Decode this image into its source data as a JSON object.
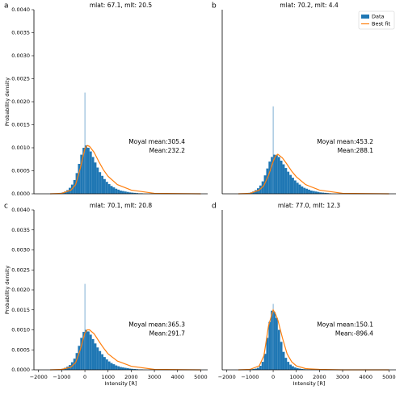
{
  "chart_data": [
    {
      "type": "histogram",
      "panel_label": "a",
      "title": "mlat: 67.1, mlt: 20.5",
      "ylabel": "Probability density",
      "xlim": [
        -2200,
        5300
      ],
      "ylim": [
        0,
        0.004
      ],
      "yticks": [
        {
          "value": 0,
          "label": "0.0000"
        },
        {
          "value": 0.0005,
          "label": "0.0005"
        },
        {
          "value": 0.001,
          "label": "0.0010"
        },
        {
          "value": 0.0015,
          "label": "0.0015"
        },
        {
          "value": 0.002,
          "label": "0.0020"
        },
        {
          "value": 0.0025,
          "label": "0.0025"
        },
        {
          "value": 0.003,
          "label": "0.0030"
        },
        {
          "value": 0.0035,
          "label": "0.0035"
        },
        {
          "value": 0.004,
          "label": "0.0040"
        }
      ],
      "hist": {
        "color": "#1f77b4",
        "bins": [
          -1200,
          -1100,
          -1000,
          -900,
          -800,
          -700,
          -600,
          -500,
          -400,
          -300,
          -200,
          -100,
          -10,
          10,
          100,
          200,
          300,
          400,
          500,
          600,
          700,
          800,
          900,
          1000,
          1100,
          1200,
          1300,
          1400,
          1500,
          1600,
          1700,
          1800,
          1900,
          2000,
          2100,
          2200,
          2300,
          2400,
          2500
        ],
        "values": [
          1e-05,
          2e-05,
          3e-05,
          5e-05,
          8e-05,
          0.00013,
          0.0002,
          0.0003,
          0.00045,
          0.00065,
          0.00085,
          0.001,
          0.0022,
          0.00105,
          0.001,
          0.00092,
          0.0008,
          0.00068,
          0.00057,
          0.00047,
          0.00039,
          0.00032,
          0.00026,
          0.00021,
          0.00017,
          0.00014,
          0.00011,
          9e-05,
          7e-05,
          6e-05,
          5e-05,
          4e-05,
          3e-05,
          2.5e-05,
          2e-05,
          1.5e-05,
          1e-05,
          1e-05
        ]
      },
      "fit": {
        "color": "#ff7f0e",
        "x": [
          -1500,
          -1000,
          -600,
          -400,
          -200,
          0,
          100,
          200,
          400,
          600,
          800,
          1000,
          1400,
          2000,
          3000,
          5000
        ],
        "values": [
          0,
          1e-05,
          8e-05,
          0.0002,
          0.00055,
          0.00098,
          0.00105,
          0.00103,
          0.0009,
          0.0007,
          0.00052,
          0.00038,
          0.0002,
          8e-05,
          1e-05,
          0
        ]
      },
      "annotations": [
        "Moyal mean:305.4",
        "Mean:232.2"
      ]
    },
    {
      "type": "histogram",
      "panel_label": "b",
      "title": "mlat: 70.2, mlt: 4.4",
      "xlim": [
        -2200,
        5300
      ],
      "ylim": [
        0,
        0.004
      ],
      "hist": {
        "name": "Data",
        "color": "#1f77b4",
        "bins": [
          -1200,
          -1100,
          -1000,
          -900,
          -800,
          -700,
          -600,
          -500,
          -400,
          -300,
          -200,
          -100,
          -10,
          10,
          100,
          200,
          300,
          400,
          500,
          600,
          700,
          800,
          900,
          1000,
          1100,
          1200,
          1300,
          1400,
          1500,
          1600,
          1700,
          1800,
          1900,
          2000,
          2100,
          2200,
          2300,
          2400,
          2500
        ],
        "values": [
          1e-05,
          2e-05,
          3e-05,
          5e-05,
          8e-05,
          0.00012,
          0.00018,
          0.00027,
          0.0004,
          0.00055,
          0.0007,
          0.0008,
          0.0019,
          0.00085,
          0.00084,
          0.0008,
          0.00072,
          0.00064,
          0.00056,
          0.00048,
          0.00041,
          0.00035,
          0.00029,
          0.00024,
          0.0002,
          0.00016,
          0.00013,
          0.00011,
          9e-05,
          7e-05,
          6e-05,
          5e-05,
          4e-05,
          3e-05,
          2.5e-05,
          2e-05,
          1.5e-05,
          1e-05
        ]
      },
      "fit": {
        "name": "Best fit",
        "color": "#ff7f0e",
        "x": [
          -1500,
          -1000,
          -600,
          -400,
          -200,
          0,
          100,
          200,
          400,
          600,
          800,
          1000,
          1400,
          2000,
          3000,
          5000
        ],
        "values": [
          0,
          1e-05,
          8e-05,
          0.00018,
          0.0004,
          0.0007,
          0.00082,
          0.00086,
          0.00078,
          0.00064,
          0.00049,
          0.00037,
          0.0002,
          8e-05,
          1e-05,
          0
        ]
      },
      "legend": "upper right",
      "annotations": [
        "Moyal mean:453.2",
        "Mean:288.1"
      ]
    },
    {
      "type": "histogram",
      "panel_label": "c",
      "title": "mlat: 70.1, mlt: 20.8",
      "ylabel": "Probability density",
      "xlabel": "Intensity [R]",
      "xlim": [
        -2200,
        5300
      ],
      "ylim": [
        0,
        0.004
      ],
      "xticks": [
        {
          "value": -2000,
          "label": "−2000"
        },
        {
          "value": -1000,
          "label": "−1000"
        },
        0,
        1000,
        2000,
        3000,
        4000,
        5000
      ],
      "yticks": [
        {
          "value": 0,
          "label": "0.0000"
        },
        {
          "value": 0.0005,
          "label": "0.0005"
        },
        {
          "value": 0.001,
          "label": "0.0010"
        },
        {
          "value": 0.0015,
          "label": "0.0015"
        },
        {
          "value": 0.002,
          "label": "0.0020"
        },
        {
          "value": 0.0025,
          "label": "0.0025"
        },
        {
          "value": 0.003,
          "label": "0.0030"
        },
        {
          "value": 0.0035,
          "label": "0.0035"
        },
        {
          "value": 0.004,
          "label": "0.0040"
        }
      ],
      "hist": {
        "color": "#1f77b4",
        "bins": [
          -1200,
          -1100,
          -1000,
          -900,
          -800,
          -700,
          -600,
          -500,
          -400,
          -300,
          -200,
          -100,
          -10,
          10,
          100,
          200,
          300,
          400,
          500,
          600,
          700,
          800,
          900,
          1000,
          1100,
          1200,
          1300,
          1400,
          1500,
          1600,
          1700,
          1800,
          1900,
          2000,
          2100,
          2200,
          2300,
          2400,
          2500
        ],
        "values": [
          1e-05,
          2e-05,
          3e-05,
          5e-05,
          8e-05,
          0.00012,
          0.00019,
          0.00028,
          0.00042,
          0.0006,
          0.0008,
          0.00095,
          0.00215,
          0.001,
          0.00096,
          0.00088,
          0.00077,
          0.00066,
          0.00056,
          0.00047,
          0.00039,
          0.00032,
          0.00026,
          0.00021,
          0.00017,
          0.00014,
          0.00011,
          9e-05,
          7e-05,
          6e-05,
          5e-05,
          4e-05,
          3e-05,
          2.5e-05,
          2e-05,
          1.5e-05,
          1e-05,
          1e-05
        ]
      },
      "fit": {
        "color": "#ff7f0e",
        "x": [
          -1500,
          -1000,
          -600,
          -400,
          -200,
          0,
          100,
          200,
          400,
          600,
          800,
          1000,
          1400,
          2000,
          3000,
          5000
        ],
        "values": [
          0,
          1e-05,
          7e-05,
          0.00018,
          0.0005,
          0.00092,
          0.001,
          0.001,
          0.0009,
          0.00072,
          0.00055,
          0.0004,
          0.00022,
          9e-05,
          1e-05,
          0
        ]
      },
      "annotations": [
        "Moyal mean:365.3",
        "Mean:291.7"
      ]
    },
    {
      "type": "histogram",
      "panel_label": "d",
      "title": "mlat: 77.0, mlt: 12.3",
      "xlabel": "Intensity [R]",
      "xlim": [
        -2200,
        5300
      ],
      "ylim": [
        0,
        0.004
      ],
      "xticks": [
        {
          "value": -2000,
          "label": "−2000"
        },
        {
          "value": -1000,
          "label": "−1000"
        },
        0,
        1000,
        2000,
        3000,
        4000,
        5000
      ],
      "hist": {
        "color": "#1f77b4",
        "bins": [
          -1200,
          -1100,
          -1000,
          -900,
          -800,
          -700,
          -600,
          -500,
          -400,
          -300,
          -200,
          -100,
          -10,
          10,
          100,
          200,
          300,
          400,
          500,
          600,
          700,
          800,
          900,
          1000,
          1100,
          1200,
          1300,
          1400,
          1500,
          1600,
          1700,
          1800,
          1900,
          2000,
          2100,
          2200,
          2300,
          2400,
          2500
        ],
        "values": [
          5e-06,
          1e-05,
          1e-05,
          2e-05,
          3e-05,
          5e-05,
          0.0001,
          0.0002,
          0.0004,
          0.0008,
          0.0012,
          0.00148,
          0.00165,
          0.00145,
          0.0013,
          0.001,
          0.0007,
          0.00045,
          0.0003,
          0.0002,
          0.00013,
          9e-05,
          6e-05,
          4e-05,
          3e-05,
          2e-05,
          1.5e-05,
          1e-05,
          8e-06,
          6e-06,
          5e-06,
          4e-06,
          3e-06,
          2e-06,
          2e-06,
          1e-06,
          1e-06,
          1e-06
        ]
      },
      "fit": {
        "color": "#ff7f0e",
        "x": [
          -1500,
          -1000,
          -600,
          -400,
          -200,
          0,
          100,
          200,
          400,
          600,
          800,
          1000,
          1400,
          2000,
          3000,
          5000
        ],
        "values": [
          0,
          1e-05,
          0.0001,
          0.00035,
          0.0011,
          0.0015,
          0.0014,
          0.00125,
          0.0008,
          0.0004,
          0.0002,
          0.0001,
          3e-05,
          1e-05,
          0,
          0
        ]
      },
      "annotations": [
        "Moyal mean:150.1",
        "Mean:-896.4"
      ]
    }
  ]
}
